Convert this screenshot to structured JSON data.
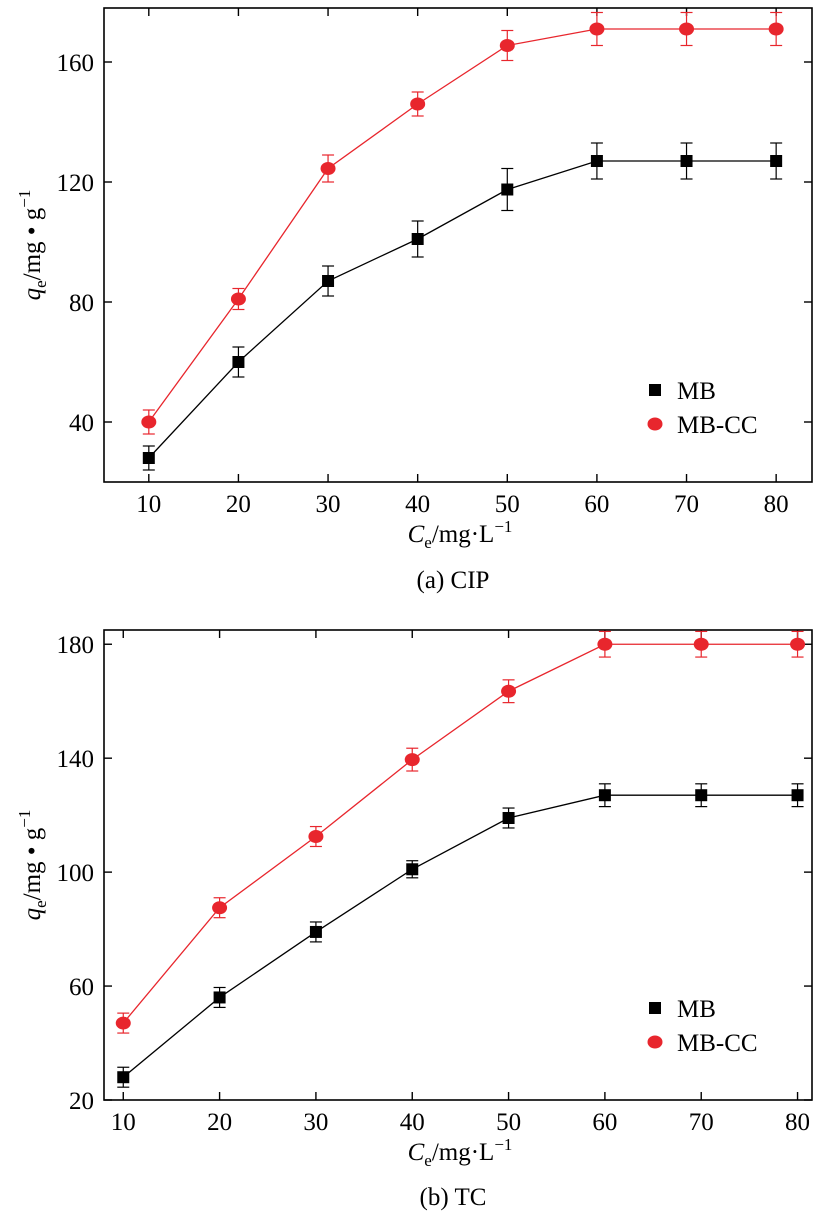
{
  "chart_data": [
    {
      "type": "line",
      "caption": "(a) CIP",
      "xlabel": {
        "main": "C",
        "sub": "e",
        "unit": "/mg·L",
        "sup": "−1"
      },
      "ylabel": {
        "main": "q",
        "sub": "e",
        "unit": "/mg • g",
        "sup": "−1"
      },
      "x": [
        10,
        20,
        30,
        40,
        50,
        60,
        70,
        80
      ],
      "xlim": [
        5,
        84
      ],
      "ylim": [
        20,
        178
      ],
      "xticks": [
        10,
        20,
        30,
        40,
        50,
        60,
        70,
        80
      ],
      "yticks": [
        40,
        80,
        120,
        160
      ],
      "legend_position": "right-middle",
      "series": [
        {
          "name": "MB",
          "color": "#000000",
          "marker": "square",
          "values": [
            28,
            60,
            87,
            101,
            117.5,
            127,
            127,
            127
          ],
          "errors": [
            4,
            5,
            5,
            6,
            7,
            6,
            6,
            6
          ]
        },
        {
          "name": "MB-CC",
          "color": "#e8262d",
          "marker": "circle",
          "values": [
            40,
            81,
            124.5,
            146,
            165.5,
            171,
            171,
            171
          ],
          "errors": [
            4,
            3.5,
            4.5,
            4,
            5,
            5.5,
            5.5,
            5.5
          ]
        }
      ]
    },
    {
      "type": "line",
      "caption": "(b) TC",
      "xlabel": {
        "main": "C",
        "sub": "e",
        "unit": "/mg·L",
        "sup": "−1"
      },
      "ylabel": {
        "main": "q",
        "sub": "e",
        "unit": "/mg • g",
        "sup": "−1"
      },
      "x": [
        10,
        20,
        30,
        40,
        50,
        60,
        70,
        80
      ],
      "xlim": [
        8,
        81.5
      ],
      "ylim": [
        20,
        185
      ],
      "xticks": [
        10,
        20,
        30,
        40,
        50,
        60,
        70,
        80
      ],
      "yticks": [
        20,
        60,
        100,
        140,
        180
      ],
      "legend_position": "right-bottom",
      "series": [
        {
          "name": "MB",
          "color": "#000000",
          "marker": "square",
          "values": [
            28,
            56,
            79,
            101,
            119,
            127,
            127,
            127
          ],
          "errors": [
            3.5,
            3.5,
            3.5,
            3,
            3.5,
            4,
            4,
            4
          ]
        },
        {
          "name": "MB-CC",
          "color": "#e8262d",
          "marker": "circle",
          "values": [
            47,
            87.5,
            112.5,
            139.5,
            163.5,
            180,
            180,
            180
          ],
          "errors": [
            3.5,
            3.5,
            3.5,
            4,
            4,
            4.5,
            4.5,
            4.5
          ]
        }
      ]
    }
  ]
}
